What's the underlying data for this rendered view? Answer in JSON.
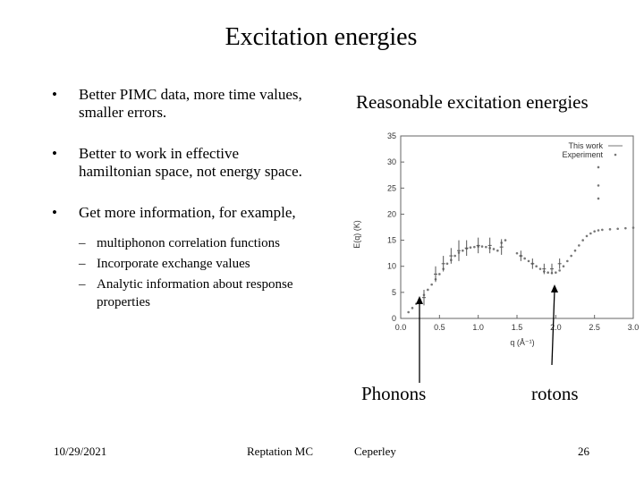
{
  "slide": {
    "title": "Excitation energies",
    "bullets": [
      "Better PIMC data, more time values, smaller errors.",
      "Better to work in effective hamiltonian space, not energy space.",
      "Get more information, for example,"
    ],
    "sub_bullets": [
      "multiphonon correlation functions",
      "Incorporate exchange values",
      "Analytic information about response properties"
    ],
    "right_heading": "Reasonable excitation energies",
    "phonons_label": "Phonons",
    "rotons_label": "rotons",
    "arrow_color": "#000000"
  },
  "footer": {
    "date": "10/29/2021",
    "center": "Reptation MC",
    "author": "Ceperley",
    "page": "26"
  },
  "chart_data": {
    "type": "scatter",
    "xlabel": "q (Å⁻¹)",
    "ylabel": "E(q) (K)",
    "xlim": [
      0,
      3.0
    ],
    "ylim": [
      0,
      35
    ],
    "xticks": [
      "0.0",
      "0.5",
      "1.0",
      "1.5",
      "2.0",
      "2.5",
      "3.0"
    ],
    "yticks": [
      "0",
      "5",
      "10",
      "15",
      "20",
      "25",
      "30",
      "35"
    ],
    "legend": [
      "This work",
      "Experiment"
    ],
    "legend_position": "top-right",
    "grid": false,
    "series": [
      {
        "name": "This work",
        "points": [
          [
            0.3,
            4.0
          ],
          [
            0.45,
            8.5
          ],
          [
            0.55,
            10.5
          ],
          [
            0.65,
            12.0
          ],
          [
            0.75,
            13.0
          ],
          [
            0.85,
            13.5
          ],
          [
            1.0,
            14.0
          ],
          [
            1.15,
            14.0
          ],
          [
            1.3,
            13.7
          ],
          [
            1.55,
            12.0
          ],
          [
            1.7,
            10.5
          ],
          [
            1.85,
            9.5
          ],
          [
            1.95,
            9.5
          ],
          [
            2.05,
            10.5
          ]
        ],
        "errors": [
          1.5,
          1.5,
          1.5,
          1.5,
          2.0,
          1.5,
          1.5,
          1.5,
          1.5,
          1.0,
          1.0,
          1.0,
          1.0,
          1.0
        ]
      },
      {
        "name": "Experiment",
        "points": [
          [
            0.1,
            1.2
          ],
          [
            0.15,
            2.0
          ],
          [
            0.2,
            2.8
          ],
          [
            0.25,
            3.5
          ],
          [
            0.3,
            4.5
          ],
          [
            0.35,
            5.5
          ],
          [
            0.4,
            6.5
          ],
          [
            0.45,
            7.5
          ],
          [
            0.5,
            8.5
          ],
          [
            0.55,
            9.5
          ],
          [
            0.6,
            10.5
          ],
          [
            0.65,
            11.2
          ],
          [
            0.7,
            12.0
          ],
          [
            0.75,
            12.6
          ],
          [
            0.8,
            13.0
          ],
          [
            0.85,
            13.4
          ],
          [
            0.9,
            13.6
          ],
          [
            0.95,
            13.7
          ],
          [
            1.0,
            13.8
          ],
          [
            1.05,
            13.8
          ],
          [
            1.1,
            13.7
          ],
          [
            1.15,
            13.5
          ],
          [
            1.2,
            13.3
          ],
          [
            1.25,
            13.0
          ],
          [
            1.3,
            14.5
          ],
          [
            1.35,
            15.0
          ],
          [
            1.5,
            12.5
          ],
          [
            1.55,
            12.0
          ],
          [
            1.6,
            11.5
          ],
          [
            1.65,
            11.0
          ],
          [
            1.7,
            10.5
          ],
          [
            1.75,
            10.0
          ],
          [
            1.8,
            9.5
          ],
          [
            1.85,
            9.0
          ],
          [
            1.9,
            8.8
          ],
          [
            1.95,
            8.7
          ],
          [
            2.0,
            8.8
          ],
          [
            2.05,
            9.2
          ],
          [
            2.1,
            10.0
          ],
          [
            2.15,
            11.0
          ],
          [
            2.2,
            12.0
          ],
          [
            2.25,
            13.0
          ],
          [
            2.3,
            14.0
          ],
          [
            2.35,
            15.0
          ],
          [
            2.4,
            15.8
          ],
          [
            2.45,
            16.3
          ],
          [
            2.5,
            16.7
          ],
          [
            2.55,
            16.9
          ],
          [
            2.6,
            17.0
          ],
          [
            2.7,
            17.1
          ],
          [
            2.8,
            17.2
          ],
          [
            2.9,
            17.3
          ],
          [
            3.0,
            17.4
          ],
          [
            2.55,
            29.0
          ],
          [
            2.55,
            25.5
          ],
          [
            2.55,
            23.0
          ]
        ]
      }
    ]
  }
}
